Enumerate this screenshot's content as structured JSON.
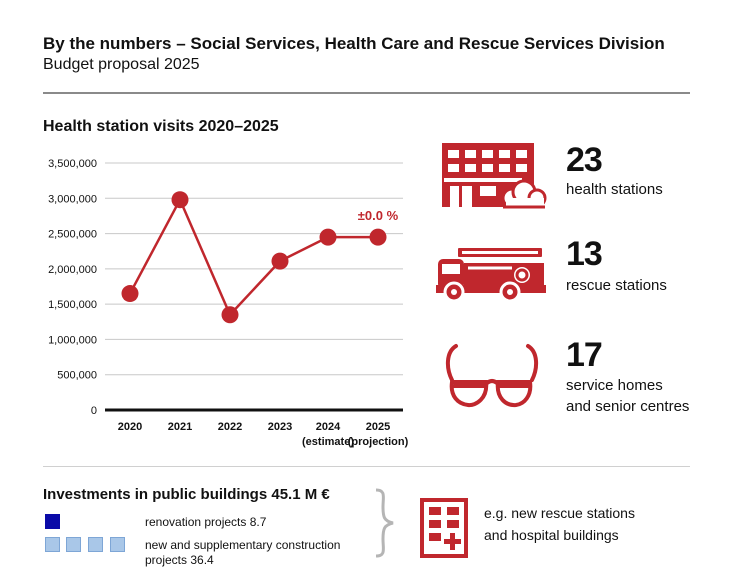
{
  "header": {
    "title": "By the numbers – Social Services, Health Care and Rescue Services Division",
    "subtitle": "Budget proposal 2025"
  },
  "chart_data": {
    "type": "line",
    "title": "Health station visits 2020–2025",
    "categories": [
      "2020",
      "2021",
      "2022",
      "2023",
      "2024\n(estimate)",
      "2025\n(projection)"
    ],
    "values": [
      1650000,
      2980000,
      1350000,
      2110000,
      2450000,
      2450000
    ],
    "ylim": [
      0,
      3500000
    ],
    "yticks": [
      0,
      500000,
      1000000,
      1500000,
      2000000,
      2500000,
      3000000,
      3500000
    ],
    "ytick_labels": [
      "0",
      "500,000",
      "1,000,000",
      "1,500,000",
      "2,000,000",
      "2,500,000",
      "3,000,000",
      "3,500,000"
    ],
    "annotation": "±0.0 %",
    "grid": true,
    "color": "#c0272d"
  },
  "stats": [
    {
      "number": "23",
      "label_lines": [
        "health stations"
      ],
      "icon": "health-station-building-icon"
    },
    {
      "number": "13",
      "label_lines": [
        "rescue stations"
      ],
      "icon": "fire-truck-icon"
    },
    {
      "number": "17",
      "label_lines": [
        "service homes",
        "and senior centres"
      ],
      "icon": "glasses-icon"
    }
  ],
  "investments": {
    "title": "Investments in public buildings 45.1 M €",
    "renovation_label": "renovation projects 8.7",
    "construction_label_line1": "new and supplementary construction",
    "construction_label_line2": "projects 36.4",
    "example_line1": "e.g. new rescue stations",
    "example_line2": "and hospital buildings",
    "renovation_squares": 1,
    "construction_squares": 4,
    "colors": {
      "renovation": "#0a0aa8",
      "construction": "#a9c7e8",
      "icon": "#c0272d"
    }
  }
}
